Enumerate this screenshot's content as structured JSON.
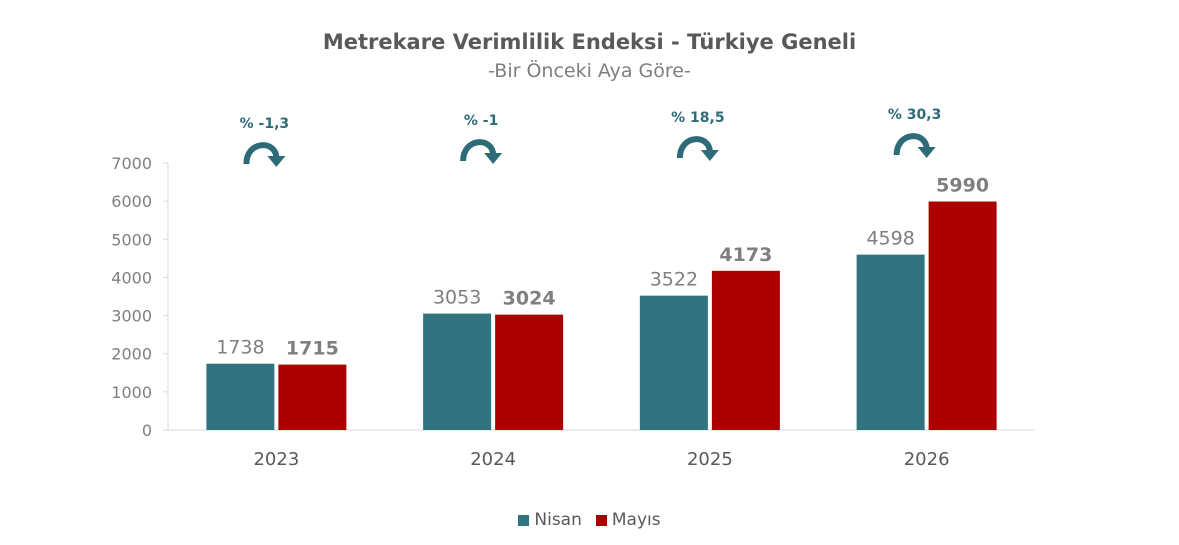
{
  "title": "Metrekare Verimlilik Endeksi - Türkiye Geneli",
  "subtitle": "-Bir Önceki Aya Göre-",
  "chart_data": {
    "type": "bar",
    "categories": [
      "2023",
      "2024",
      "2025",
      "2026"
    ],
    "series": [
      {
        "name": "Nisan",
        "values": [
          1738,
          3053,
          3522,
          4598
        ],
        "color": "#31747f"
      },
      {
        "name": "Mayıs",
        "values": [
          1715,
          3024,
          4173,
          5990
        ],
        "color": "#ab0000"
      }
    ],
    "changes": [
      "% -1,3",
      "% -1",
      "% 18,5",
      "% 30,3"
    ],
    "ylim": [
      0,
      7000
    ],
    "yticks": [
      0,
      1000,
      2000,
      3000,
      4000,
      5000,
      6000,
      7000
    ],
    "grid": false,
    "legend": "bottom-center",
    "change_color": "#2e6b78"
  }
}
